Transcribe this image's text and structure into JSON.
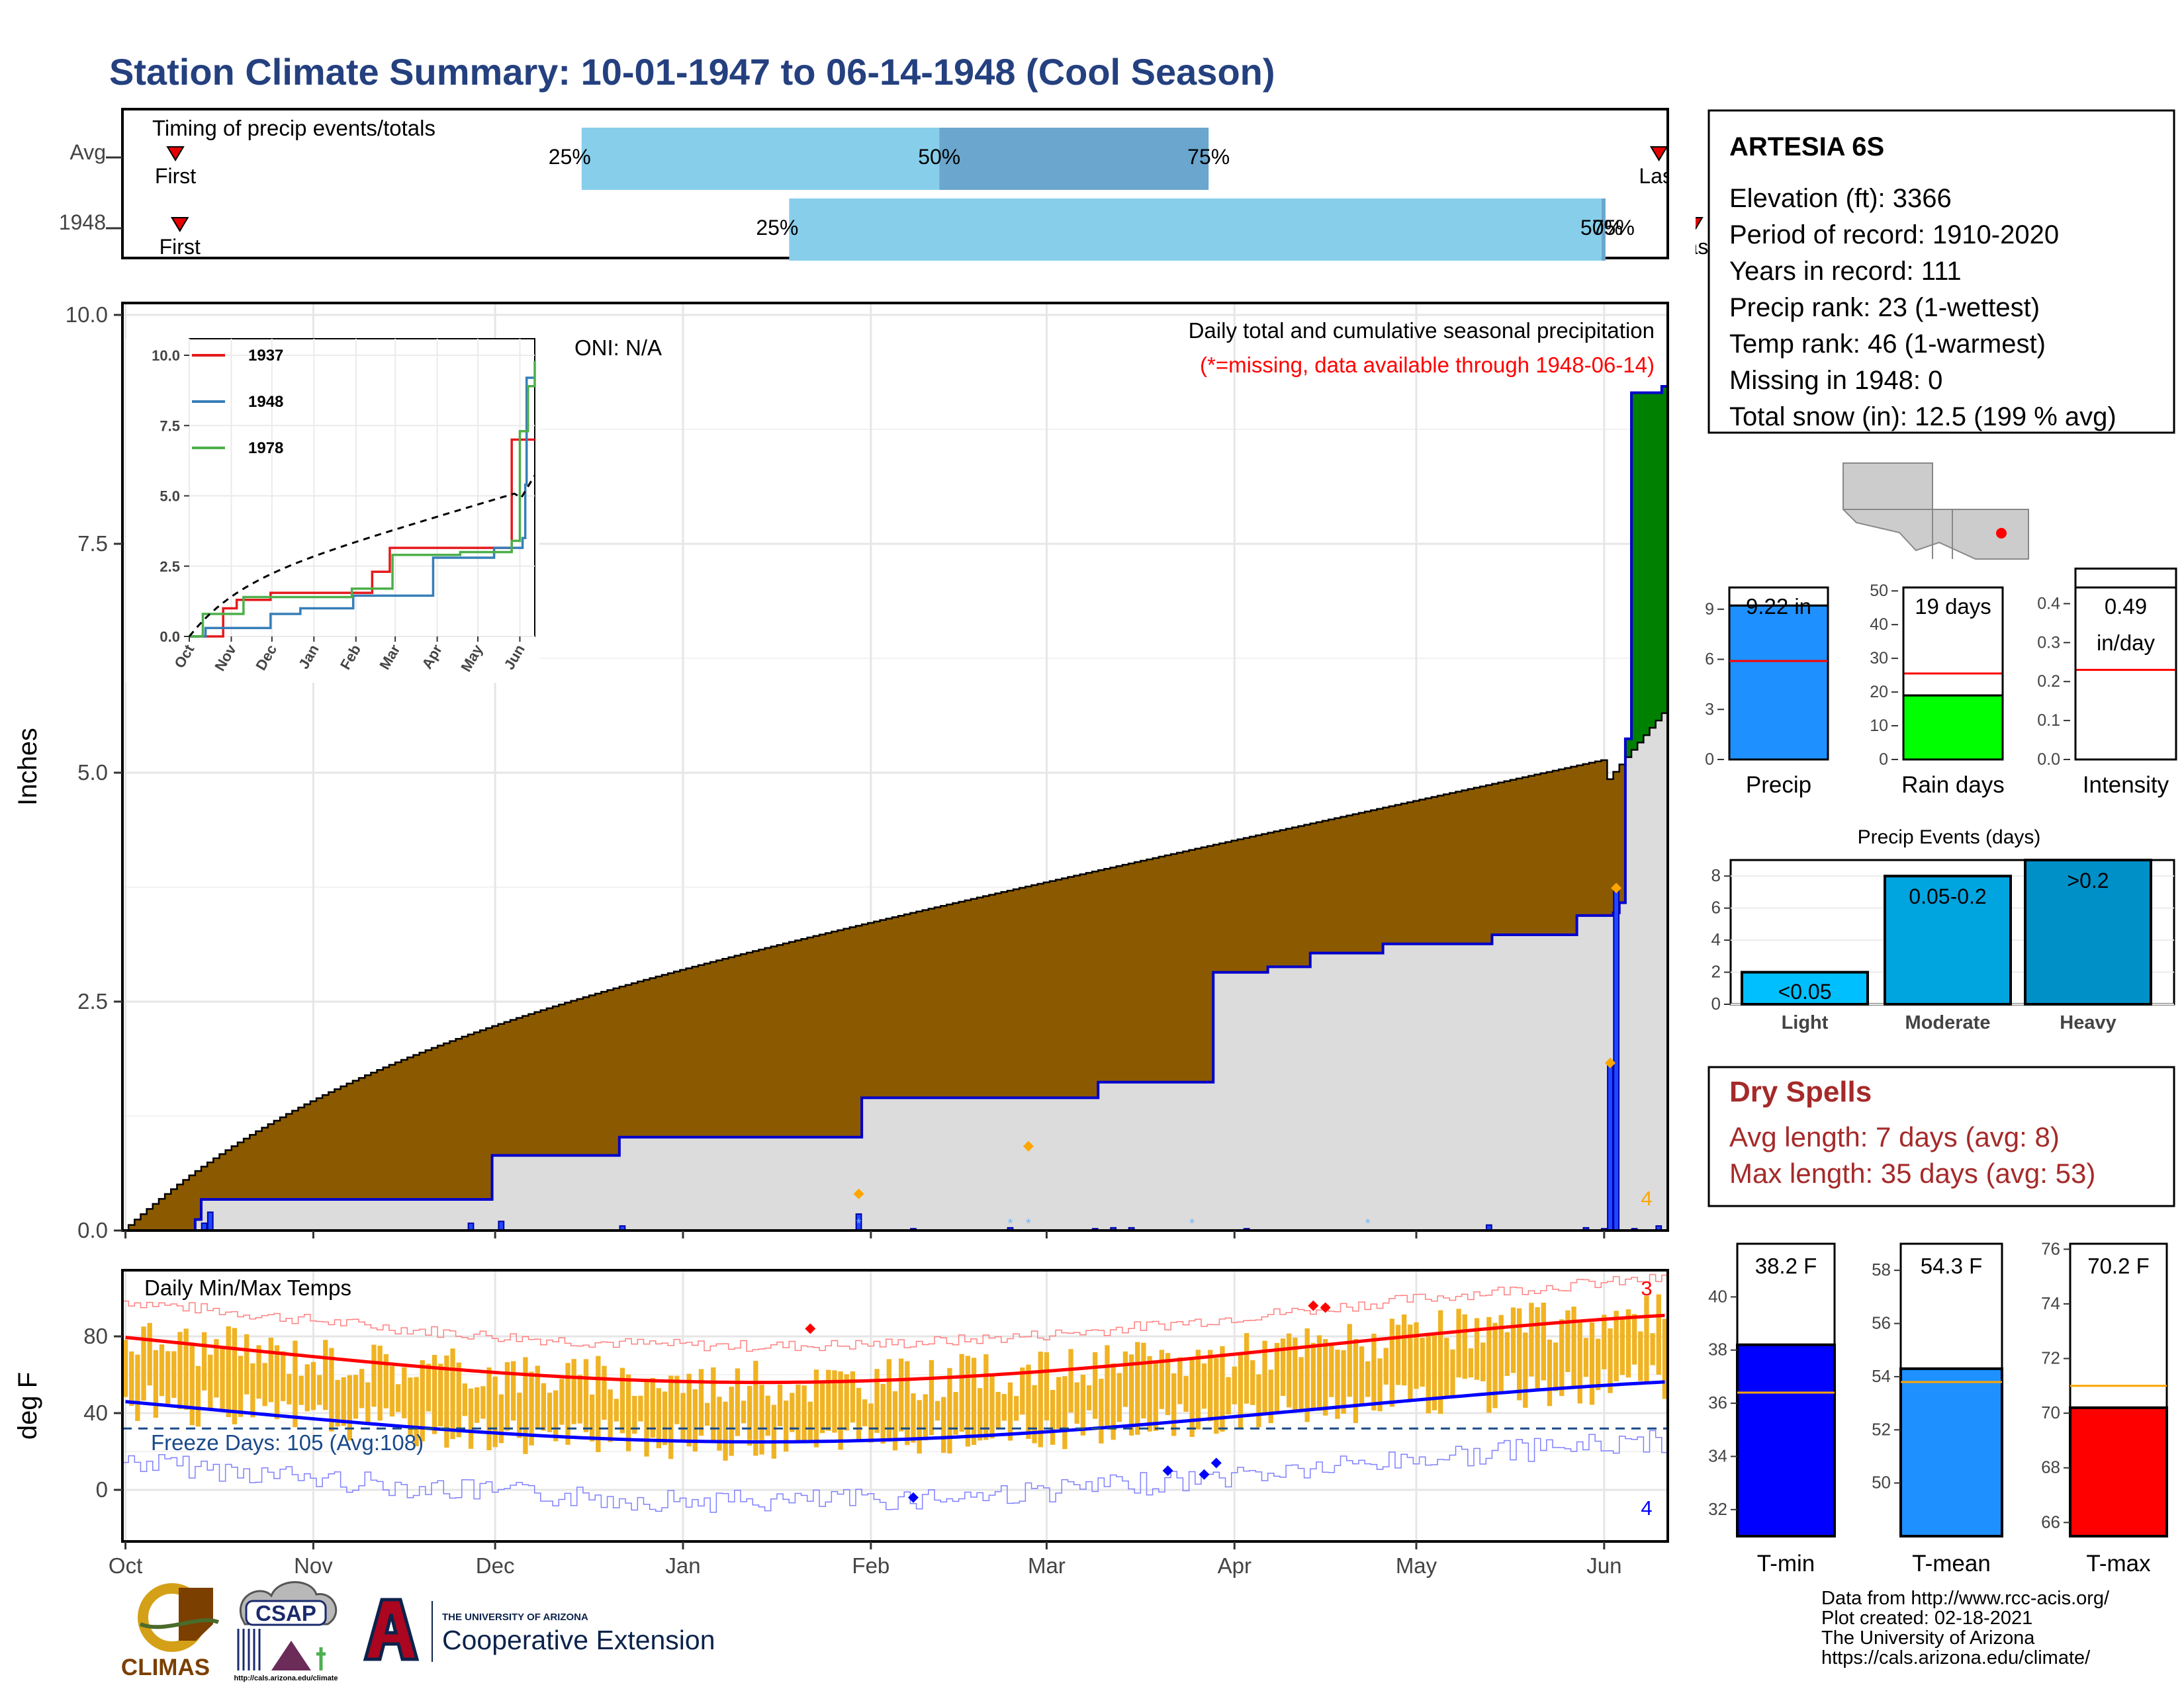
{
  "page": {
    "title": "Station Climate Summary: 10-01-1947 to 06-14-1948 (Cool Season)"
  },
  "timing": {
    "title": "Timing of precip events/totals",
    "rows": [
      "Avg",
      "1948"
    ],
    "first_label": "First",
    "last_label": "Last",
    "avg": {
      "first": "2020-10-13",
      "p25": "2021-01-13",
      "p50": "2021-04-04",
      "p75": "2021-06-04",
      "last": "2021-09-14"
    },
    "y1948": {
      "first": "2020-10-14",
      "p25": "2021-03-01",
      "p50": "2021-09-01",
      "p75": "2021-09-01",
      "last": "2021-09-22"
    },
    "pct_labels": [
      "25%",
      "50%",
      "75%"
    ],
    "colors": {
      "light": "#87ceeb",
      "dark": "#6aa6cd",
      "marker": "#e60000"
    }
  },
  "precip": {
    "ylabel": "Inches",
    "oni": "ONI: N/A",
    "subtitle": "Daily total and cumulative seasonal precipitation",
    "missing_note": "(*=missing, data available through 1948-06-14)",
    "corner_count": "4",
    "months": [
      "Oct",
      "Nov",
      "Dec",
      "Jan",
      "Feb",
      "Mar",
      "Apr",
      "May",
      "Jun"
    ],
    "y_ticks": [
      "0.0",
      "2.5",
      "5.0",
      "7.5",
      "10.0"
    ],
    "colors": {
      "below_avg": "#8b5a00",
      "above_avg": "#008000",
      "bar": "#1f49ff",
      "line": "#0000cc",
      "avg_fill": "#dcdcdc"
    }
  },
  "inset": {
    "legend": [
      "1937",
      "1948",
      "1978"
    ],
    "colors": [
      "#e41a1c",
      "#377eb8",
      "#4daf4a"
    ],
    "y_ticks": [
      "0.0",
      "2.5",
      "5.0",
      "7.5",
      "10.0"
    ],
    "months": [
      "Oct",
      "Nov",
      "Dec",
      "Jan",
      "Feb",
      "Mar",
      "Apr",
      "May",
      "Jun"
    ]
  },
  "temps": {
    "title": "Daily Min/Max Temps",
    "ylabel": "deg F",
    "y_ticks": [
      "0",
      "40",
      "80"
    ],
    "freeze_label": "Freeze Days: 105 (Avg:108)",
    "record_high_count": "3",
    "record_low_count": "4",
    "months": [
      "Oct",
      "Nov",
      "Dec",
      "Jan",
      "Feb",
      "Mar",
      "Apr",
      "May",
      "Jun"
    ]
  },
  "station": {
    "name": "ARTESIA 6S",
    "lines": [
      "Elevation (ft): 3366",
      "Period of record: 1910-2020",
      "Years in record: 111",
      "Precip rank: 23 (1-wettest)",
      "Temp rank: 46 (1-warmest)",
      "Missing in 1948: 0",
      "Total snow (in): 12.5 (199 % avg)"
    ]
  },
  "summary_bars": [
    {
      "label": "Precip",
      "value_label": "9.22 in",
      "value": 9.22,
      "avg": 5.9,
      "ylim": [
        0,
        10.5
      ],
      "ticks": [
        "0",
        "3",
        "6",
        "9"
      ],
      "color": "#1e90ff"
    },
    {
      "label": "Rain days",
      "value_label": "19 days",
      "value": 19,
      "avg": 25.5,
      "ylim": [
        0,
        52
      ],
      "ticks": [
        "0",
        "10",
        "20",
        "30",
        "40",
        "50"
      ],
      "color": "#00ff00"
    },
    {
      "label": "Intensity",
      "value_label": "0.49",
      "value_label2": "in/day",
      "value": 0.49,
      "avg": 0.23,
      "ylim": [
        0,
        0.45
      ],
      "ticks": [
        "0.0",
        "0.1",
        "0.2",
        "0.3",
        "0.4"
      ],
      "color": "#ffffff"
    }
  ],
  "precip_events": {
    "title": "Precip Events (days)",
    "categories": [
      "Light",
      "Moderate",
      "Heavy"
    ],
    "bar_labels": [
      "<0.05",
      "0.05-0.2",
      ">0.2"
    ],
    "values": [
      2,
      8,
      9
    ],
    "ticks": [
      "0",
      "2",
      "4",
      "6",
      "8"
    ],
    "colors": [
      "#00bfff",
      "#00a5e0",
      "#0090c8"
    ]
  },
  "dry_spells": {
    "title": "Dry Spells",
    "avg_line": "Avg length: 7 days (avg: 8)",
    "max_line": "Max length: 35 days (avg: 53)",
    "color": "#a52a2a"
  },
  "temp_bars": [
    {
      "label": "T-min",
      "value_label": "38.2 F",
      "value": 38.2,
      "avg": 36.4,
      "ylim": [
        31,
        42
      ],
      "ticks": [
        "32",
        "34",
        "36",
        "38",
        "40"
      ],
      "color": "#0000ff"
    },
    {
      "label": "T-mean",
      "value_label": "54.3 F",
      "value": 54.3,
      "avg": 53.8,
      "ylim": [
        48,
        59
      ],
      "ticks": [
        "50",
        "52",
        "54",
        "56",
        "58"
      ],
      "color": "#1e90ff"
    },
    {
      "label": "T-max",
      "value_label": "70.2 F",
      "value": 70.2,
      "avg": 71.0,
      "ylim": [
        65.5,
        76.2
      ],
      "ticks": [
        "66",
        "68",
        "70",
        "72",
        "74",
        "76"
      ],
      "color": "#ff0000"
    }
  ],
  "logos": {
    "climas": "CLIMAS",
    "csap": "CSAP",
    "csap_url": "http://cals.arizona.edu/climate",
    "ua_line1": "THE UNIVERSITY OF ARIZONA",
    "ua_line2": "Cooperative Extension"
  },
  "footer": [
    "Data from http://www.rcc-acis.org/",
    "Plot created: 02-18-2021",
    "The University of Arizona",
    "https://cals.arizona.edu/climate/"
  ]
}
